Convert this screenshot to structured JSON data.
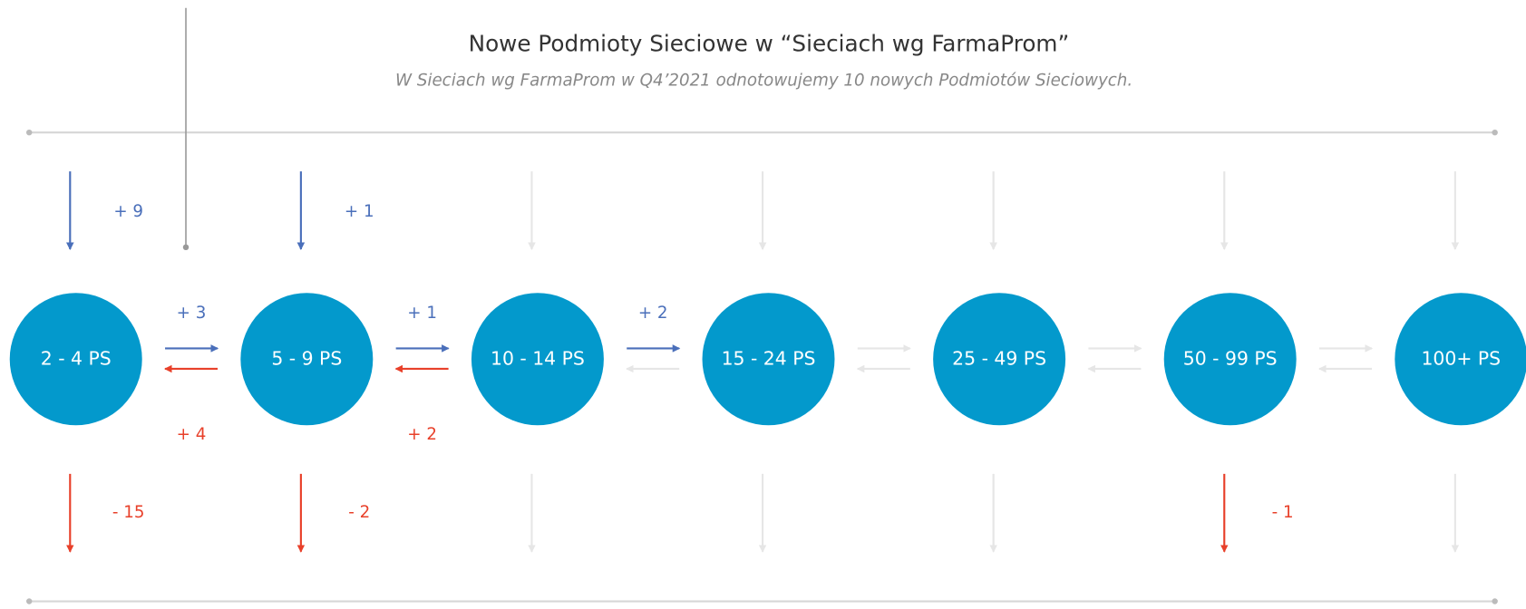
{
  "title": "Nowe Podmioty Sieciowe w “Sieciach wg FarmaProm”",
  "subtitle": "W Sieciach wg FarmaProm w Q4’2021 odnotowujemy 10 nowych Podmiotów Sieciowych.",
  "nodes": [
    {
      "label": "2 - 4 PS",
      "inflow": "+ 9",
      "outflow": "- 15"
    },
    {
      "label": "5 - 9 PS",
      "inflow": "+ 1",
      "outflow": "- 2"
    },
    {
      "label": "10 - 14 PS",
      "inflow": null,
      "outflow": null
    },
    {
      "label": "15 - 24 PS",
      "inflow": null,
      "outflow": null
    },
    {
      "label": "25 - 49 PS",
      "inflow": null,
      "outflow": null
    },
    {
      "label": "50 - 99 PS",
      "inflow": null,
      "outflow": "- 1"
    },
    {
      "label": "100+ PS",
      "inflow": null,
      "outflow": null
    }
  ],
  "links": [
    {
      "up": "+ 3",
      "down": "+ 4"
    },
    {
      "up": "+ 1",
      "down": "+ 2"
    },
    {
      "up": "+ 2",
      "down": null
    },
    {
      "up": null,
      "down": null
    },
    {
      "up": null,
      "down": null
    },
    {
      "up": null,
      "down": null
    }
  ]
}
